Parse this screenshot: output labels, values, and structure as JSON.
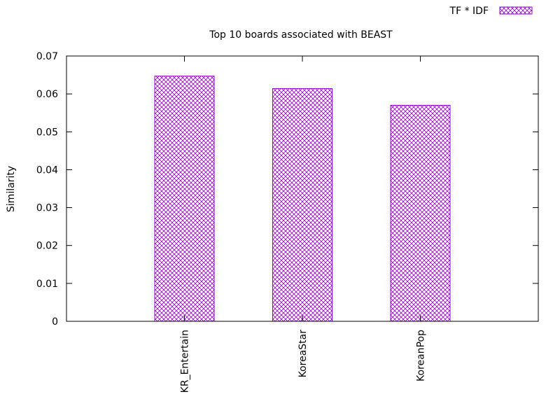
{
  "chart_data": {
    "type": "bar",
    "title": "Top 10 boards associated with BEAST",
    "xlabel": "",
    "ylabel": "Similarity",
    "categories": [
      "KR_Entertain",
      "KoreaStar",
      "KoreanPop"
    ],
    "series": [
      {
        "name": "TF * IDF",
        "values": [
          0.0647,
          0.0614,
          0.057
        ]
      }
    ],
    "ylim": [
      0,
      0.07
    ],
    "yticks": [
      0,
      0.01,
      0.02,
      0.03,
      0.04,
      0.05,
      0.06,
      0.07
    ],
    "ytick_labels": [
      "0",
      "0.01",
      "0.02",
      "0.03",
      "0.04",
      "0.05",
      "0.06",
      "0.07"
    ],
    "grid": false,
    "legend_position": "top-right",
    "bar_color": "#9400d3"
  }
}
